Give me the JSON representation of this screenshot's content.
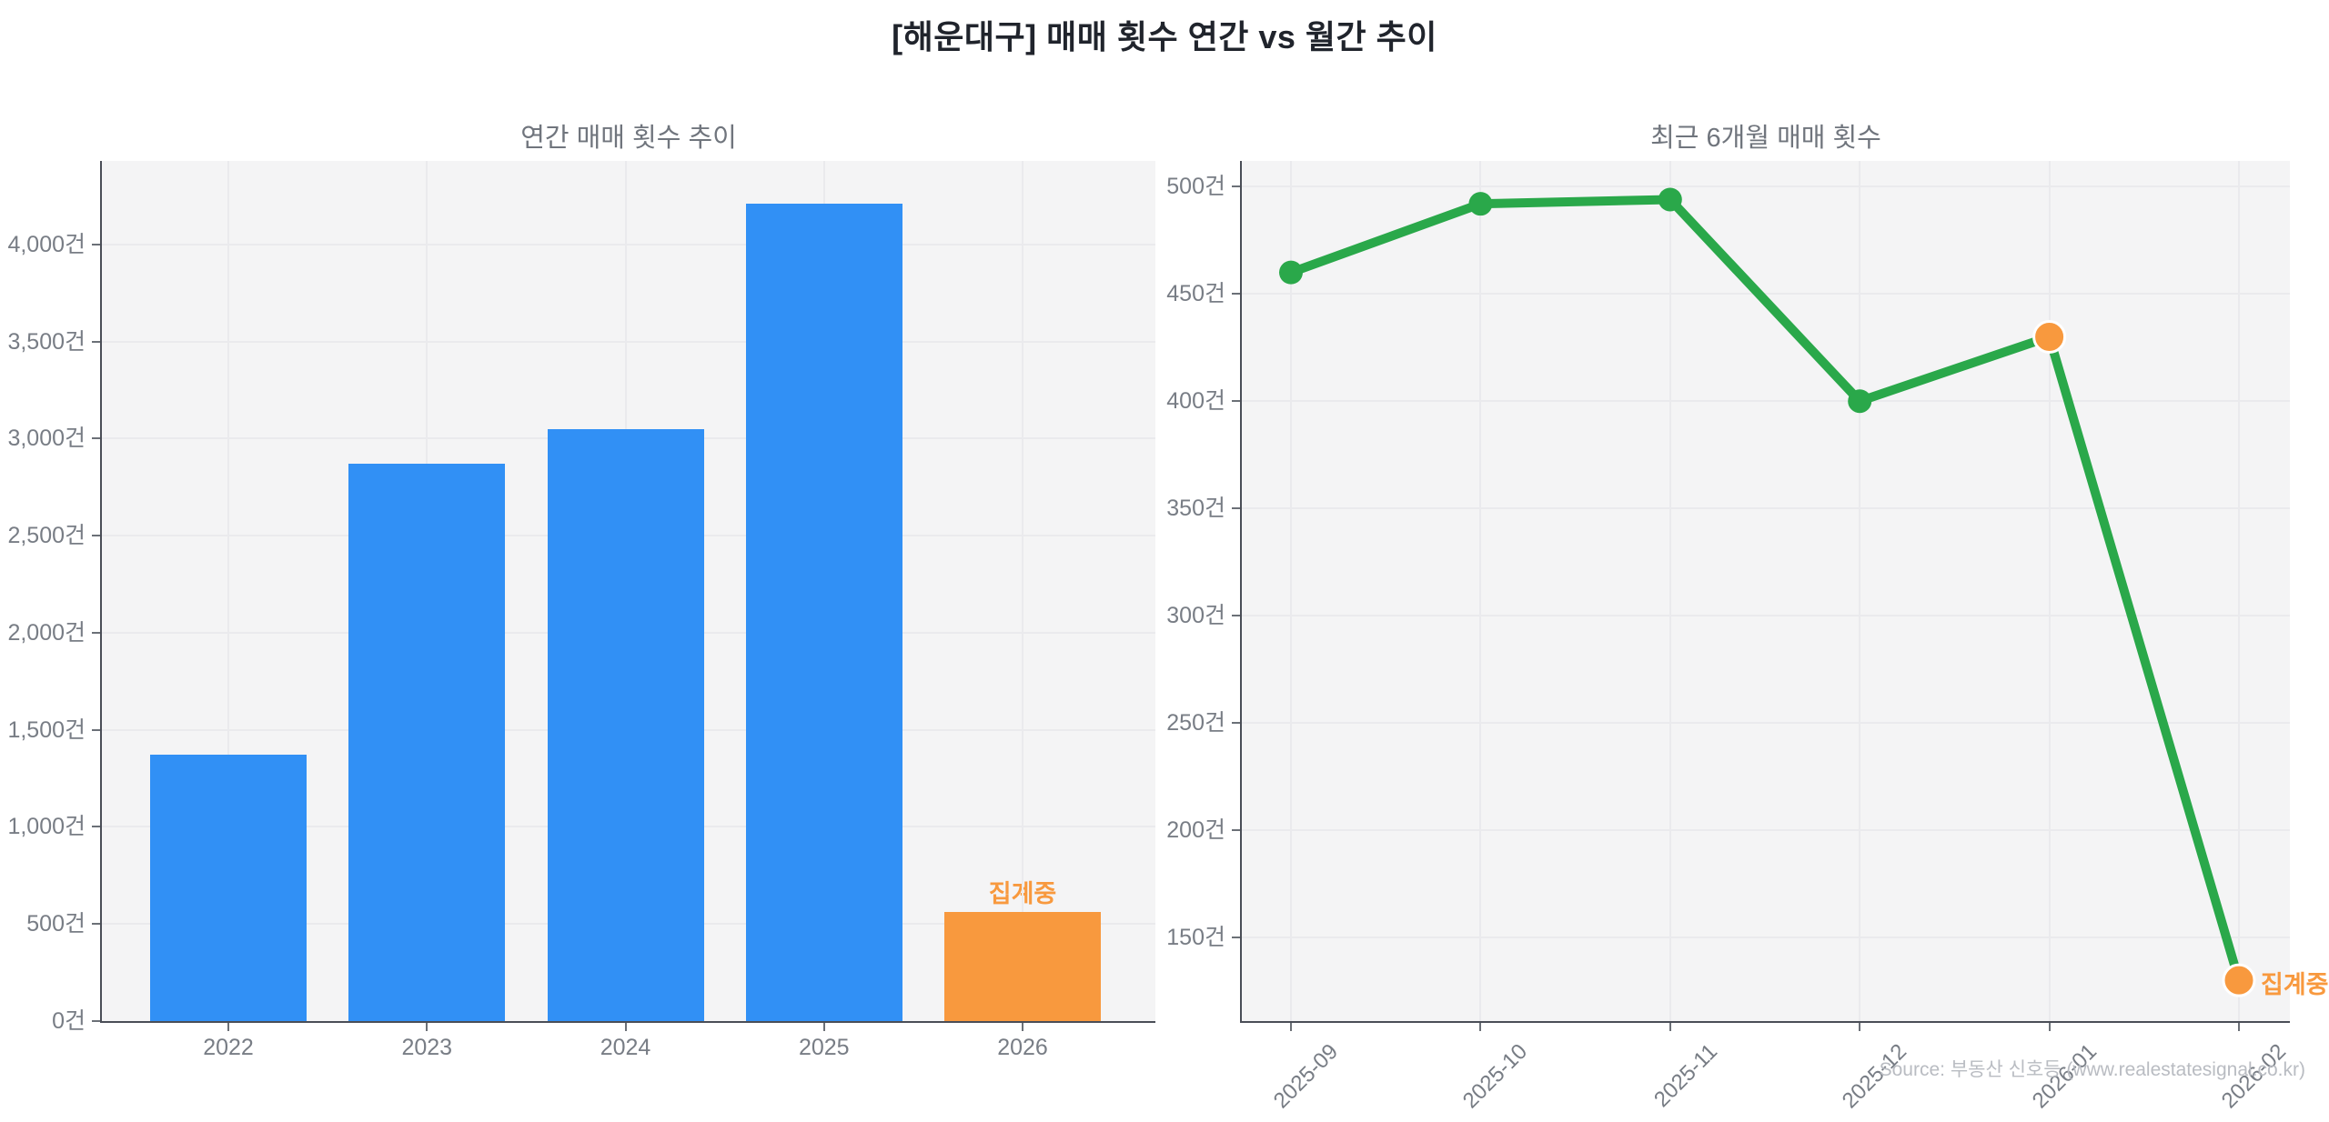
{
  "page_title": "[해운대구] 매매 횟수 연간 vs 월간 추이",
  "source_note": "Source: 부동산 신호등 (www.realestatesignal.co.kr)",
  "unit_suffix": "건",
  "colors": {
    "bar_blue": "#3190F5",
    "accent_orange": "#F8993E",
    "line_green": "#2AA84A",
    "plot_background": "#f4f4f5",
    "gridline": "#eaeaed",
    "axis_spine": "#4a4e57",
    "tick_label": "#787d85",
    "subtitle_gray": "#70757d",
    "title_dark": "#20242c",
    "source_gray": "#b9bcc2"
  },
  "chart_data": [
    {
      "type": "bar",
      "title": "연간 매매 횟수 추이",
      "categories": [
        "2022",
        "2023",
        "2024",
        "2025",
        "2026"
      ],
      "values": [
        1370,
        2870,
        3050,
        4210,
        560
      ],
      "bar_colors": [
        "#3190F5",
        "#3190F5",
        "#3190F5",
        "#3190F5",
        "#F8993E"
      ],
      "annotation": {
        "text": "집계중",
        "category_index": 4,
        "color": "#F8993E"
      },
      "yticks": [
        0,
        500,
        1000,
        1500,
        2000,
        2500,
        3000,
        3500,
        4000
      ],
      "ytick_labels": [
        "0건",
        "500건",
        "1,000건",
        "1,500건",
        "2,000건",
        "2,500건",
        "3,000건",
        "3,500건",
        "4,000건"
      ],
      "ylim": [
        0,
        4430
      ],
      "xlabel": "",
      "ylabel": "",
      "grid": true,
      "legend": false
    },
    {
      "type": "line",
      "title": "최근 6개월 매매 횟수",
      "x": [
        "2025-09",
        "2025-10",
        "2025-11",
        "2025-12",
        "2026-01",
        "2026-02"
      ],
      "values": [
        460,
        492,
        494,
        400,
        430,
        130
      ],
      "point_colors": [
        "#2AA84A",
        "#2AA84A",
        "#2AA84A",
        "#2AA84A",
        "#F8993E",
        "#F8993E"
      ],
      "line_color": "#2AA84A",
      "annotation": {
        "text": "집계중",
        "x_index": 5,
        "color": "#F8993E"
      },
      "yticks": [
        150,
        200,
        250,
        300,
        350,
        400,
        450,
        500
      ],
      "ytick_labels": [
        "150건",
        "200건",
        "250건",
        "300건",
        "350건",
        "400건",
        "450건",
        "500건"
      ],
      "ylim": [
        111,
        512
      ],
      "xlabel": "",
      "ylabel": "",
      "grid": true,
      "legend": false
    }
  ]
}
